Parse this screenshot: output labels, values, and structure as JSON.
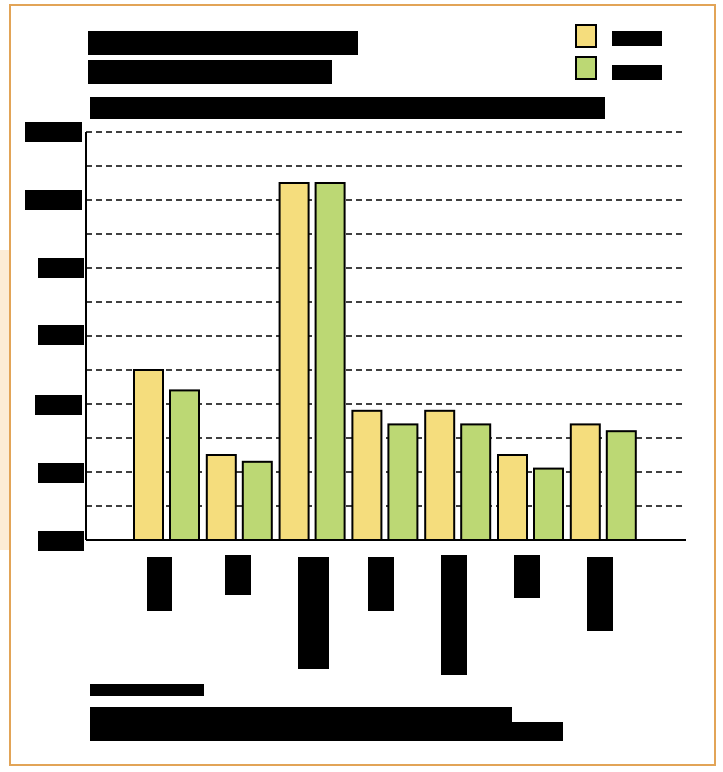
{
  "chart_data": {
    "type": "bar",
    "title": "",
    "subtitle": "",
    "header": "",
    "xlabel": "",
    "ylabel": "",
    "categories": [
      "",
      "",
      "",
      "",
      "",
      "",
      ""
    ],
    "series": [
      {
        "name": "",
        "color": "#f5dd7d",
        "values": [
          5.0,
          2.5,
          10.5,
          3.8,
          3.8,
          2.5,
          3.4
        ]
      },
      {
        "name": "",
        "color": "#bcd874",
        "values": [
          4.4,
          2.3,
          10.5,
          3.4,
          3.4,
          2.1,
          3.2
        ]
      }
    ],
    "ylim": [
      0,
      12
    ],
    "yticks": [
      "",
      "",
      "",
      "",
      "",
      "",
      ""
    ],
    "grid": true,
    "legend_position": "top-right",
    "footnote_label": "",
    "footnote": ""
  }
}
